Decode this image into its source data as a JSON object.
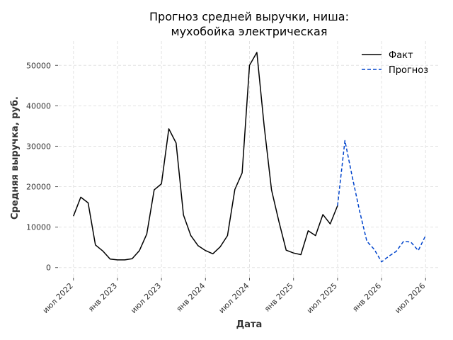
{
  "chart_data": {
    "type": "line",
    "title": [
      "Прогноз средней выручки, ниша:",
      "мухобойка электрическая"
    ],
    "xlabel": "Дата",
    "ylabel": "Средняя выручка, руб.",
    "ylim": [
      -2500,
      56000
    ],
    "grid": true,
    "legend_placement": "top-right",
    "y_ticks": [
      0,
      10000,
      20000,
      30000,
      40000,
      50000
    ],
    "y_tick_labels": [
      "0",
      "10000",
      "20000",
      "30000",
      "40000",
      "50000"
    ],
    "x_ticks": [
      "2022-07",
      "2023-01",
      "2023-07",
      "2024-01",
      "2024-07",
      "2025-01",
      "2025-07",
      "2026-01",
      "2026-07"
    ],
    "x_tick_labels": [
      "июл 2022",
      "янв 2023",
      "июл 2023",
      "янв 2024",
      "июл 2024",
      "янв 2025",
      "июл 2025",
      "янв 2026",
      "июл 2026"
    ],
    "xlim": [
      "2022-05",
      "2026-09"
    ],
    "series": [
      {
        "name": "Факт",
        "color": "#000000",
        "style": "solid",
        "x": [
          "2022-07",
          "2022-08",
          "2022-09",
          "2022-10",
          "2022-11",
          "2022-12",
          "2023-01",
          "2023-02",
          "2023-03",
          "2023-04",
          "2023-05",
          "2023-06",
          "2023-07",
          "2023-08",
          "2023-09",
          "2023-10",
          "2023-11",
          "2023-12",
          "2024-01",
          "2024-02",
          "2024-03",
          "2024-04",
          "2024-05",
          "2024-06",
          "2024-07",
          "2024-08",
          "2024-09",
          "2024-10",
          "2024-11",
          "2024-12",
          "2025-01",
          "2025-02",
          "2025-03",
          "2025-04",
          "2025-05",
          "2025-06",
          "2025-07"
        ],
        "values": [
          12700,
          17400,
          16000,
          5600,
          4100,
          2100,
          1900,
          1900,
          2200,
          4200,
          8300,
          19200,
          20700,
          34300,
          30800,
          13000,
          7900,
          5400,
          4200,
          3400,
          5100,
          7900,
          19300,
          23400,
          50000,
          53200,
          35000,
          19200,
          11400,
          4300,
          3600,
          3200,
          9100,
          7900,
          13100,
          10800,
          15300
        ]
      },
      {
        "name": "Прогноз",
        "color": "#0044cc",
        "style": "dashed",
        "x": [
          "2025-07",
          "2025-08",
          "2025-09",
          "2025-10",
          "2025-11",
          "2025-12",
          "2026-01",
          "2026-02",
          "2026-03",
          "2026-04",
          "2026-05",
          "2026-06",
          "2026-07"
        ],
        "values": [
          15300,
          31400,
          22500,
          14000,
          6500,
          4500,
          1400,
          2800,
          4000,
          6500,
          6300,
          4200,
          7900
        ]
      }
    ]
  }
}
